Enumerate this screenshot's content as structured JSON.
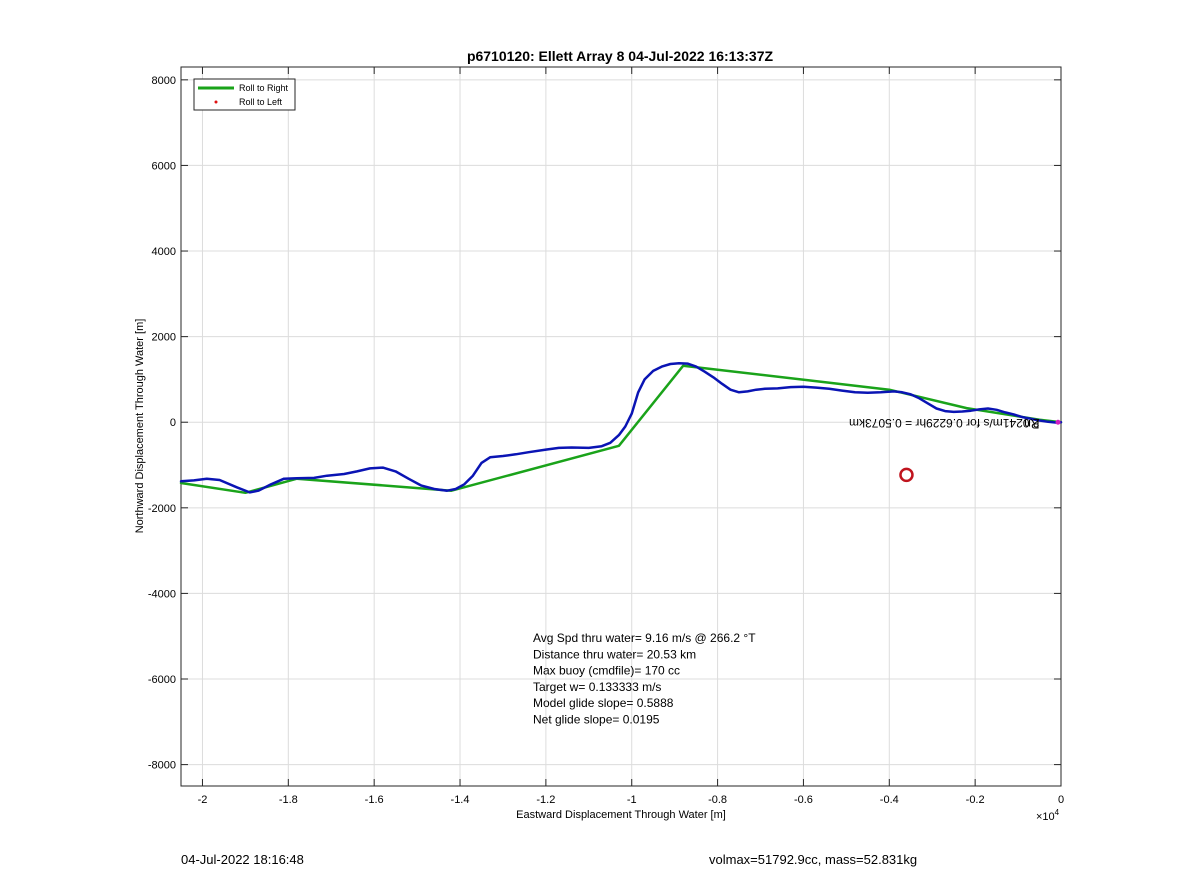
{
  "footer": {
    "date": "04-Jul-2022 18:16:48",
    "mass_info": "volmax=51792.9cc, mass=52.831kg"
  },
  "chart_data": {
    "type": "line",
    "title": "p6710120: Ellett Array 8 04-Jul-2022 16:13:37Z",
    "xlabel": "Eastward Displacement Through Water [m]",
    "ylabel": "Northward Displacement Through Water [m]",
    "x_exponent_label": "×10",
    "x_exponent_power": "4",
    "xlim": [
      -2.05,
      0
    ],
    "ylim": [
      -8500,
      8300
    ],
    "xticks": [
      -2,
      -1.8,
      -1.6,
      -1.4,
      -1.2,
      -1,
      -0.8,
      -0.6,
      -0.4,
      -0.2,
      0
    ],
    "xtick_labels": [
      "-2",
      "-1.8",
      "-1.6",
      "-1.4",
      "-1.2",
      "-1",
      "-0.8",
      "-0.6",
      "-0.4",
      "-0.2",
      "0"
    ],
    "yticks": [
      8000,
      6000,
      4000,
      2000,
      0,
      -2000,
      -4000,
      -6000,
      -8000
    ],
    "ytick_labels": [
      "8000",
      "6000",
      "4000",
      "2000",
      "0",
      "-2000",
      "-4000",
      "-6000",
      "-8000"
    ],
    "grid": true,
    "legend_position": "top-left",
    "legend": [
      {
        "label": "Roll to Right",
        "marker": "line",
        "color": "#1aa31a"
      },
      {
        "label": "Roll to Left",
        "marker": "dot",
        "color": "#e01010"
      }
    ],
    "series": [
      {
        "name": "Roll to Right",
        "color": "#1aa31a",
        "x": [
          -2.05,
          -1.9,
          -1.78,
          -1.42,
          -1.03,
          -0.88,
          -0.4,
          -0.22,
          -0.05,
          0
        ],
        "y": [
          -1420,
          -1650,
          -1320,
          -1600,
          -550,
          1320,
          760,
          330,
          60,
          0
        ]
      },
      {
        "color": "#0a14b4",
        "x": [
          -2.05,
          -2.02,
          -1.99,
          -1.96,
          -1.92,
          -1.89,
          -1.87,
          -1.84,
          -1.81,
          -1.78,
          -1.74,
          -1.71,
          -1.67,
          -1.64,
          -1.61,
          -1.58,
          -1.55,
          -1.52,
          -1.49,
          -1.46,
          -1.43,
          -1.41,
          -1.39,
          -1.37,
          -1.35,
          -1.33,
          -1.3,
          -1.27,
          -1.24,
          -1.2,
          -1.17,
          -1.14,
          -1.1,
          -1.07,
          -1.05,
          -1.03,
          -1.015,
          -1.0,
          -0.985,
          -0.97,
          -0.95,
          -0.93,
          -0.91,
          -0.89,
          -0.87,
          -0.85,
          -0.83,
          -0.81,
          -0.79,
          -0.77,
          -0.75,
          -0.73,
          -0.71,
          -0.69,
          -0.66,
          -0.63,
          -0.6,
          -0.57,
          -0.54,
          -0.51,
          -0.48,
          -0.45,
          -0.42,
          -0.39,
          -0.37,
          -0.35,
          -0.33,
          -0.31,
          -0.29,
          -0.27,
          -0.25,
          -0.23,
          -0.21,
          -0.19,
          -0.17,
          -0.15,
          -0.13,
          -0.11,
          -0.09,
          -0.07,
          -0.05,
          -0.03,
          -0.01,
          0
        ],
        "y": [
          -1380,
          -1360,
          -1320,
          -1350,
          -1520,
          -1640,
          -1600,
          -1450,
          -1320,
          -1310,
          -1300,
          -1250,
          -1210,
          -1150,
          -1080,
          -1060,
          -1150,
          -1320,
          -1480,
          -1560,
          -1600,
          -1560,
          -1450,
          -1250,
          -950,
          -820,
          -790,
          -750,
          -700,
          -640,
          -600,
          -590,
          -600,
          -560,
          -480,
          -300,
          -100,
          200,
          700,
          1000,
          1200,
          1300,
          1360,
          1380,
          1370,
          1300,
          1180,
          1050,
          900,
          760,
          700,
          720,
          760,
          780,
          790,
          820,
          830,
          810,
          780,
          740,
          700,
          690,
          700,
          720,
          700,
          650,
          560,
          440,
          320,
          260,
          240,
          250,
          270,
          300,
          320,
          290,
          230,
          180,
          120,
          80,
          40,
          10,
          -10,
          0
        ]
      }
    ],
    "markers": [
      {
        "type": "circle",
        "x": -0.36,
        "y": -1230,
        "color": "#c0141e"
      },
      {
        "type": "dot",
        "x": 0,
        "y": 0,
        "color": "#d020c0"
      }
    ],
    "annotations": [
      {
        "text": "2.0241m/s for 0.6229hr = 0.5073km",
        "x": -0.05,
        "y": 30,
        "upside_down": true
      },
      {
        "text": "Rn",
        "x": -0.05,
        "y": 0,
        "upside_down": true
      }
    ],
    "stats": [
      "Avg Spd thru water=  9.16 m/s @ 266.2 °T",
      "Distance thru water= 20.53 km",
      "Max buoy (cmdfile)= 170 cc",
      "Target w= 0.133333 m/s",
      "Model glide slope= 0.5888",
      "Net glide slope= 0.0195"
    ]
  }
}
